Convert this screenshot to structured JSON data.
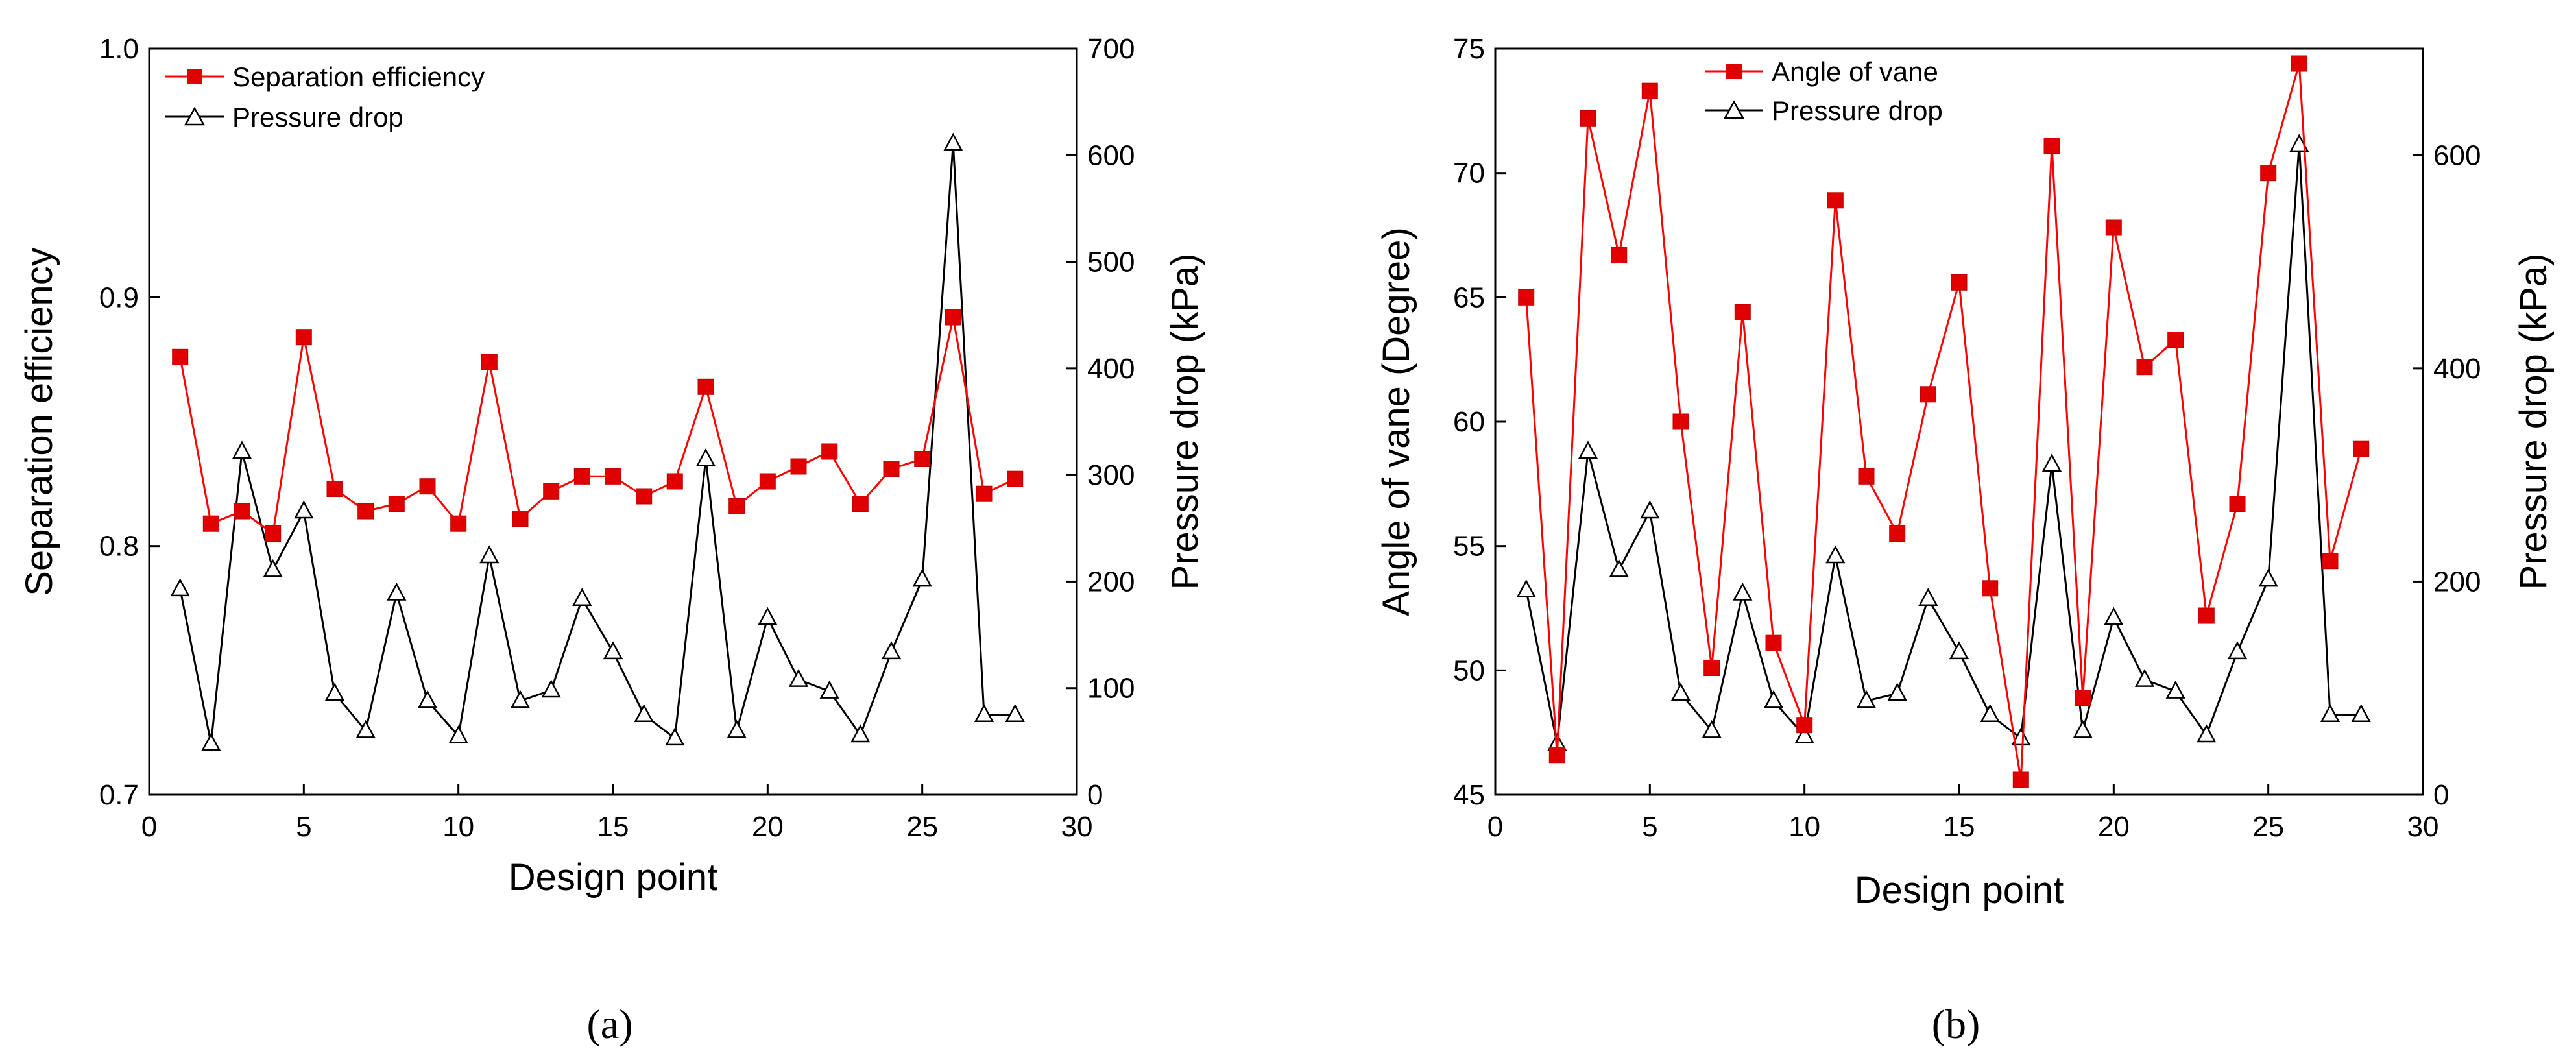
{
  "chart_data": [
    {
      "type": "line",
      "panel_caption": "(a)",
      "xlabel": "Design point",
      "ylabel": "Separation efficiency",
      "y2label": "Pressure drop (kPa)",
      "xlim": [
        0,
        30
      ],
      "ylim": [
        0.7,
        1.0
      ],
      "y2lim": [
        0,
        700
      ],
      "xticks": [
        0,
        5,
        10,
        15,
        20,
        25,
        30
      ],
      "yticks": [
        0.7,
        0.8,
        0.9,
        1.0
      ],
      "ytick_labels": [
        "0.7",
        "0.8",
        "0.9",
        "1.0"
      ],
      "y2ticks": [
        0,
        100,
        200,
        300,
        400,
        500,
        600,
        700
      ],
      "legend_position": "top-left",
      "x": [
        1,
        2,
        3,
        4,
        5,
        6,
        7,
        8,
        9,
        10,
        11,
        12,
        13,
        14,
        15,
        16,
        17,
        18,
        19,
        20,
        21,
        22,
        23,
        24,
        25,
        26,
        27,
        28
      ],
      "series": [
        {
          "name": "Separation efficiency",
          "axis": "left",
          "color": "#ff0000",
          "marker": "square",
          "values": [
            0.876,
            0.809,
            0.814,
            0.805,
            0.884,
            0.823,
            0.814,
            0.817,
            0.824,
            0.809,
            0.874,
            0.811,
            0.822,
            0.828,
            0.828,
            0.82,
            0.826,
            0.864,
            0.816,
            0.826,
            0.832,
            0.838,
            0.817,
            0.831,
            0.835,
            0.892,
            0.821,
            0.827
          ]
        },
        {
          "name": "Pressure drop",
          "axis": "right",
          "color": "#000000",
          "marker": "open-triangle",
          "values": [
            193,
            48,
            322,
            211,
            266,
            95,
            60,
            189,
            88,
            55,
            224,
            88,
            98,
            184,
            134,
            75,
            53,
            315,
            60,
            166,
            108,
            97,
            56,
            134,
            202,
            611,
            75,
            75
          ]
        }
      ]
    },
    {
      "type": "line",
      "panel_caption": "(b)",
      "xlabel": "Design point",
      "ylabel": "Angle of vane (Degree)",
      "y2label": "Pressure drop (kPa)",
      "xlim": [
        0,
        30
      ],
      "ylim": [
        45,
        75
      ],
      "y2lim": [
        0,
        700
      ],
      "xticks": [
        0,
        5,
        10,
        15,
        20,
        25,
        30
      ],
      "yticks": [
        45,
        50,
        55,
        60,
        65,
        70,
        75
      ],
      "ytick_labels": [
        "45",
        "50",
        "55",
        "60",
        "65",
        "70",
        "75"
      ],
      "y2ticks": [
        0,
        200,
        400,
        600
      ],
      "legend_position": "top-left",
      "x": [
        1,
        2,
        3,
        4,
        5,
        6,
        7,
        8,
        9,
        10,
        11,
        12,
        13,
        14,
        15,
        16,
        17,
        18,
        19,
        20,
        21,
        22,
        23,
        24,
        25,
        26,
        27,
        28
      ],
      "series": [
        {
          "name": "Angle of vane",
          "axis": "left",
          "color": "#ff0000",
          "marker": "square",
          "values": [
            65.0,
            46.6,
            72.2,
            66.7,
            73.3,
            60.0,
            50.1,
            64.4,
            51.1,
            47.8,
            68.9,
            57.8,
            55.5,
            61.1,
            65.6,
            53.3,
            45.6,
            71.1,
            48.9,
            67.8,
            62.2,
            63.3,
            52.2,
            56.7,
            70.0,
            74.4,
            54.4,
            58.9
          ]
        },
        {
          "name": "Pressure drop",
          "axis": "right",
          "color": "#000000",
          "marker": "open-triangle",
          "values": [
            192,
            48,
            322,
            211,
            266,
            95,
            60,
            189,
            88,
            55,
            224,
            88,
            95,
            184,
            134,
            75,
            53,
            310,
            60,
            166,
            108,
            97,
            56,
            134,
            202,
            610,
            75,
            75
          ]
        }
      ]
    }
  ]
}
